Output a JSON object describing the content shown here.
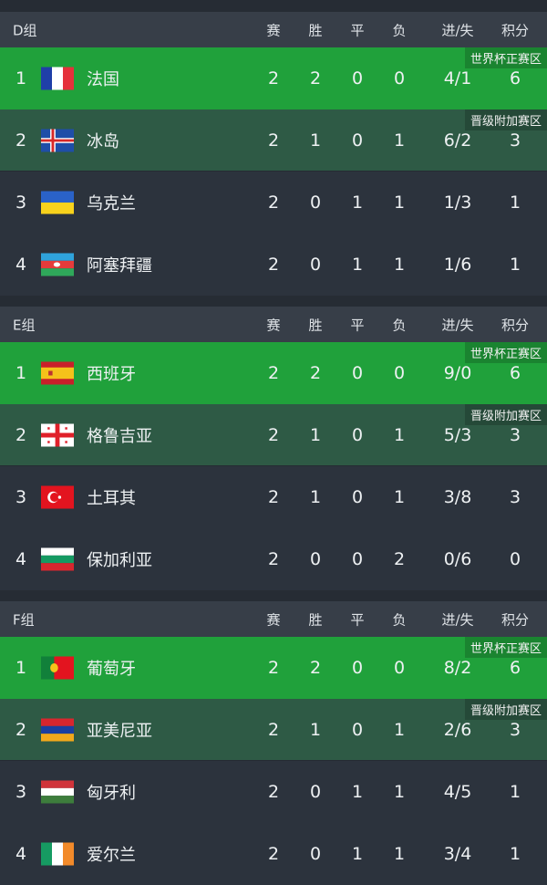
{
  "columns": [
    "赛",
    "胜",
    "平",
    "负",
    "进/失",
    "积分"
  ],
  "zones": {
    "q1": "世界杯正赛区",
    "q2": "晋级附加赛区"
  },
  "colors": {
    "qualify": "#20a13b",
    "playoff": "#2e5a45",
    "background": "#2c333d",
    "header": "#373e48"
  },
  "groups": [
    {
      "name": "D组",
      "teams": [
        {
          "rank": "1",
          "name": "法国",
          "flag": "france",
          "p": "2",
          "w": "2",
          "d": "0",
          "l": "0",
          "gd": "4/1",
          "pts": "6"
        },
        {
          "rank": "2",
          "name": "冰岛",
          "flag": "iceland",
          "p": "2",
          "w": "1",
          "d": "0",
          "l": "1",
          "gd": "6/2",
          "pts": "3"
        },
        {
          "rank": "3",
          "name": "乌克兰",
          "flag": "ukraine",
          "p": "2",
          "w": "0",
          "d": "1",
          "l": "1",
          "gd": "1/3",
          "pts": "1"
        },
        {
          "rank": "4",
          "name": "阿塞拜疆",
          "flag": "azerbaijan",
          "p": "2",
          "w": "0",
          "d": "1",
          "l": "1",
          "gd": "1/6",
          "pts": "1"
        }
      ]
    },
    {
      "name": "E组",
      "teams": [
        {
          "rank": "1",
          "name": "西班牙",
          "flag": "spain",
          "p": "2",
          "w": "2",
          "d": "0",
          "l": "0",
          "gd": "9/0",
          "pts": "6"
        },
        {
          "rank": "2",
          "name": "格鲁吉亚",
          "flag": "georgia",
          "p": "2",
          "w": "1",
          "d": "0",
          "l": "1",
          "gd": "5/3",
          "pts": "3"
        },
        {
          "rank": "3",
          "name": "土耳其",
          "flag": "turkey",
          "p": "2",
          "w": "1",
          "d": "0",
          "l": "1",
          "gd": "3/8",
          "pts": "3"
        },
        {
          "rank": "4",
          "name": "保加利亚",
          "flag": "bulgaria",
          "p": "2",
          "w": "0",
          "d": "0",
          "l": "2",
          "gd": "0/6",
          "pts": "0"
        }
      ]
    },
    {
      "name": "F组",
      "teams": [
        {
          "rank": "1",
          "name": "葡萄牙",
          "flag": "portugal",
          "p": "2",
          "w": "2",
          "d": "0",
          "l": "0",
          "gd": "8/2",
          "pts": "6"
        },
        {
          "rank": "2",
          "name": "亚美尼亚",
          "flag": "armenia",
          "p": "2",
          "w": "1",
          "d": "0",
          "l": "1",
          "gd": "2/6",
          "pts": "3"
        },
        {
          "rank": "3",
          "name": "匈牙利",
          "flag": "hungary",
          "p": "2",
          "w": "0",
          "d": "1",
          "l": "1",
          "gd": "4/5",
          "pts": "1"
        },
        {
          "rank": "4",
          "name": "爱尔兰",
          "flag": "ireland",
          "p": "2",
          "w": "0",
          "d": "1",
          "l": "1",
          "gd": "3/4",
          "pts": "1"
        }
      ]
    }
  ]
}
